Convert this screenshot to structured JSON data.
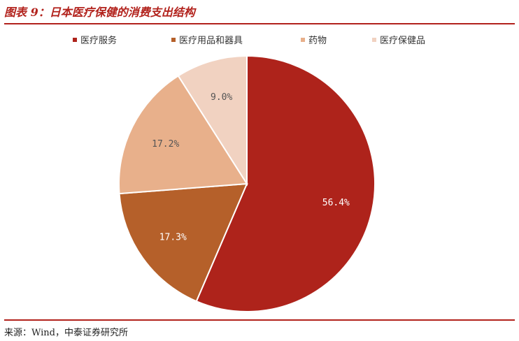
{
  "title": "图表 9：日本医疗保健的消费支出结构",
  "source": "来源：Wind，中泰证券研究所",
  "chart_data": {
    "type": "pie",
    "legend_position": "top",
    "start_angle_deg": 0,
    "direction": "clockwise",
    "slices": [
      {
        "name": "医疗服务",
        "value": 56.4,
        "label": "56.4%",
        "color": "#ae231b"
      },
      {
        "name": "医疗用品和器具",
        "value": 17.3,
        "label": "17.3%",
        "color": "#b5602a"
      },
      {
        "name": "药物",
        "value": 17.2,
        "label": "17.2%",
        "color": "#e8b08b"
      },
      {
        "name": "医疗保健品",
        "value": 9.0,
        "label": "9.0%",
        "color": "#f1d2c1"
      }
    ]
  },
  "label_colors": [
    "#ffffff",
    "#ffffff",
    "#555555",
    "#555555"
  ]
}
